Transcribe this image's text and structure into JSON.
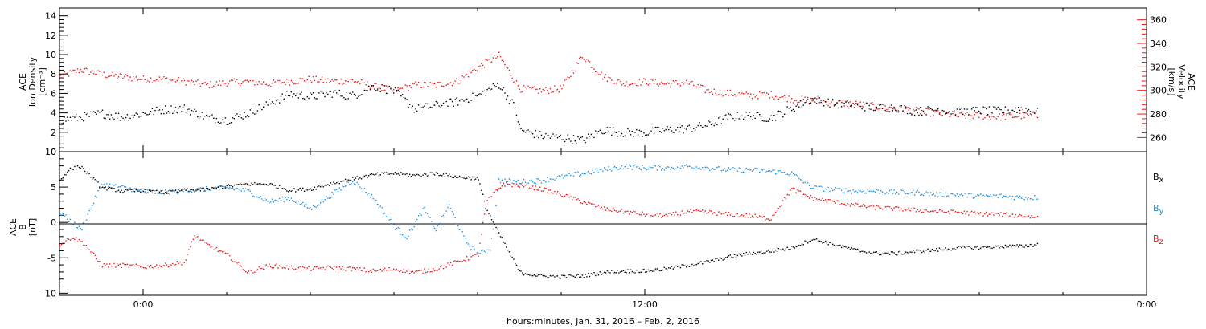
{
  "colors": {
    "black": "#000000",
    "red": "#e41a1c",
    "blue": "#1f8fe0"
  },
  "x_axis": {
    "label": "hours:minutes, Jan. 31, 2016 – Feb. 2, 2016",
    "range_hours": [
      -2.0,
      24.0
    ],
    "ticks": [
      {
        "hour": 0,
        "label": "0:00"
      },
      {
        "hour": 12,
        "label": "12:00"
      },
      {
        "hour": 24,
        "label": "0:00"
      }
    ],
    "minor_ticks_hours": [
      2,
      4,
      6,
      8,
      10,
      14,
      16,
      18,
      20,
      22,
      26,
      28,
      30,
      32,
      34
    ]
  },
  "panel_top": {
    "left_axis": {
      "line1": "ACE",
      "line2": "Ion Density",
      "line3": "[cm⁻³]",
      "ticks": [
        0,
        2,
        4,
        6,
        8,
        10,
        12,
        14
      ],
      "ylim": [
        0,
        14.8
      ]
    },
    "right_axis": {
      "line1": "ACE",
      "line2": "Velocity",
      "line3": "[km/s]",
      "ticks": [
        260,
        280,
        300,
        320,
        340,
        360
      ],
      "ylim": [
        248,
        370
      ]
    }
  },
  "panel_bottom": {
    "left_axis": {
      "line1": "ACE",
      "line2": "B",
      "line3": "[nT]",
      "ticks": [
        -10,
        -5,
        0,
        5,
        10
      ],
      "ylim": [
        -10.3,
        10.0
      ]
    },
    "legend": [
      {
        "label": "B",
        "sub": "x",
        "color": "#000000"
      },
      {
        "label": "B",
        "sub": "y",
        "color": "#1f8fe0"
      },
      {
        "label": "B",
        "sub": "z",
        "color": "#e41a1c"
      }
    ]
  },
  "chart_data": [
    {
      "type": "scatter",
      "title": "",
      "xlabel": "hours:minutes, Jan. 31, 2016 – Feb. 2, 2016",
      "x_unit": "hours from 2016-01-31 00:00",
      "series": [
        {
          "axis": "left",
          "color": "#000000",
          "x": [
            -2.0,
            -1.5,
            -1.0,
            -0.5,
            0.0,
            0.5,
            1.0,
            1.5,
            2.0,
            2.5,
            3.0,
            3.5,
            4.0,
            4.5,
            5.0,
            5.5,
            6.0,
            6.5,
            7.0,
            7.5,
            8.0,
            8.5,
            8.9,
            9.0,
            9.5,
            10.0,
            10.5,
            11.0,
            11.5,
            12.0,
            12.5,
            13.0,
            13.5,
            14.0,
            14.5,
            15.0,
            15.5,
            16.0,
            16.5,
            17.0,
            17.5,
            18.0,
            18.5,
            19.0,
            19.5,
            20.0,
            20.5,
            21.0,
            21.4
          ],
          "values": [
            3.3,
            3.6,
            4.0,
            3.6,
            4.0,
            4.4,
            4.5,
            3.6,
            3.3,
            4.0,
            5.0,
            6.0,
            5.7,
            6.1,
            5.8,
            6.8,
            6.3,
            4.4,
            4.8,
            5.2,
            5.8,
            7.0,
            4.5,
            2.3,
            1.7,
            1.5,
            1.2,
            2.3,
            2.0,
            2.0,
            2.3,
            2.4,
            2.8,
            3.6,
            3.8,
            3.5,
            4.5,
            5.5,
            5.0,
            4.8,
            4.6,
            4.6,
            4.2,
            4.4,
            4.1,
            4.3,
            4.2,
            4.5,
            4.1
          ]
        },
        {
          "axis": "right",
          "color": "#e41a1c",
          "x": [
            -2.0,
            -1.5,
            -1.0,
            -0.5,
            0.0,
            0.5,
            1.0,
            1.5,
            2.0,
            2.5,
            3.0,
            3.5,
            4.0,
            4.5,
            5.0,
            5.5,
            6.0,
            6.5,
            7.0,
            7.5,
            8.0,
            8.5,
            9.0,
            9.5,
            10.0,
            10.5,
            11.0,
            11.5,
            12.0,
            12.5,
            13.0,
            13.5,
            14.0,
            14.5,
            15.0,
            15.5,
            16.0,
            16.5,
            17.0,
            17.5,
            18.0,
            18.5,
            19.0,
            19.5,
            20.0,
            20.5,
            21.0,
            21.4
          ],
          "values": [
            312,
            318,
            314,
            312,
            310,
            310,
            308,
            305,
            307,
            308,
            306,
            308,
            310,
            308,
            309,
            304,
            300,
            305,
            305,
            308,
            320,
            330,
            302,
            300,
            302,
            330,
            312,
            306,
            308,
            306,
            307,
            300,
            298,
            296,
            297,
            293,
            292,
            290,
            289,
            287,
            285,
            283,
            281,
            279,
            279,
            278,
            279,
            279
          ]
        }
      ]
    },
    {
      "type": "scatter",
      "title": "",
      "xlabel": "hours:minutes, Jan. 31, 2016 – Feb. 2, 2016",
      "x_unit": "hours from 2016-01-31 00:00",
      "series": [
        {
          "name": "Bx",
          "color": "#000000",
          "x": [
            -2.0,
            -1.8,
            -1.5,
            -1.0,
            -0.5,
            0.0,
            0.5,
            1.0,
            1.5,
            2.0,
            2.5,
            3.0,
            3.5,
            4.0,
            4.5,
            5.0,
            5.5,
            6.0,
            6.5,
            7.0,
            7.5,
            8.0,
            8.2,
            8.5,
            9.0,
            9.5,
            10.0,
            10.5,
            11.0,
            11.5,
            12.0,
            12.5,
            13.0,
            13.5,
            14.0,
            14.5,
            15.0,
            15.5,
            16.0,
            16.5,
            17.0,
            17.5,
            18.0,
            18.5,
            19.0,
            19.5,
            20.0,
            20.5,
            21.0,
            21.4
          ],
          "values": [
            6.0,
            7.5,
            8.0,
            5.0,
            4.5,
            4.5,
            4.3,
            4.6,
            4.7,
            5.2,
            5.5,
            5.5,
            4.6,
            4.8,
            5.6,
            6.2,
            6.8,
            7.0,
            6.7,
            7.0,
            6.5,
            6.3,
            2.0,
            -1.5,
            -7.0,
            -7.5,
            -7.6,
            -7.5,
            -7.0,
            -6.8,
            -6.8,
            -6.5,
            -6.0,
            -5.5,
            -4.8,
            -4.3,
            -4.0,
            -3.5,
            -2.3,
            -3.0,
            -3.8,
            -4.3,
            -4.3,
            -4.0,
            -3.8,
            -3.5,
            -3.5,
            -3.3,
            -3.3,
            -3.0
          ]
        },
        {
          "name": "By",
          "color": "#1f8fe0",
          "x": [
            -2.0,
            -1.5,
            -1.0,
            -0.5,
            0.0,
            0.5,
            1.0,
            1.5,
            2.0,
            2.5,
            3.0,
            3.5,
            4.0,
            4.5,
            5.0,
            5.5,
            6.0,
            6.3,
            6.7,
            7.0,
            7.3,
            7.7,
            8.0,
            8.3,
            8.5,
            9.0,
            9.5,
            10.0,
            10.5,
            11.0,
            11.5,
            12.0,
            12.5,
            13.0,
            13.5,
            14.0,
            14.5,
            15.0,
            15.5,
            16.0,
            16.5,
            17.0,
            17.5,
            18.0,
            18.5,
            19.0,
            19.5,
            20.0,
            20.5,
            21.0,
            21.4
          ],
          "values": [
            1.5,
            -1.0,
            5.5,
            5.0,
            4.5,
            4.3,
            4.6,
            4.8,
            5.0,
            4.5,
            3.0,
            3.5,
            2.0,
            4.0,
            6.0,
            3.5,
            -0.5,
            -2.0,
            2.0,
            -1.0,
            2.5,
            -2.5,
            -4.5,
            -3.5,
            6.0,
            5.8,
            6.0,
            6.5,
            7.0,
            7.5,
            8.0,
            7.8,
            7.8,
            8.0,
            7.8,
            7.5,
            7.5,
            7.3,
            7.0,
            5.0,
            4.7,
            4.5,
            4.5,
            4.3,
            4.3,
            4.0,
            4.0,
            3.8,
            3.8,
            3.6,
            3.6
          ]
        },
        {
          "name": "Bz",
          "color": "#e41a1c",
          "x": [
            -2.0,
            -1.7,
            -1.4,
            -1.0,
            -0.5,
            0.0,
            0.5,
            1.0,
            1.2,
            1.5,
            2.0,
            2.5,
            3.0,
            3.5,
            4.0,
            4.5,
            5.0,
            5.5,
            6.0,
            6.5,
            7.0,
            7.5,
            8.0,
            8.2,
            8.6,
            9.0,
            9.5,
            10.0,
            10.5,
            11.0,
            11.5,
            12.0,
            12.5,
            13.0,
            13.5,
            14.0,
            14.5,
            15.0,
            15.5,
            16.0,
            16.5,
            17.0,
            17.5,
            18.0,
            18.5,
            19.0,
            19.5,
            20.0,
            20.5,
            21.0,
            21.4
          ],
          "values": [
            -3.0,
            -2.0,
            -3.0,
            -6.0,
            -6.0,
            -6.2,
            -6.0,
            -5.5,
            -1.8,
            -3.0,
            -4.5,
            -7.0,
            -6.0,
            -6.3,
            -6.5,
            -6.3,
            -6.5,
            -6.8,
            -6.5,
            -7.0,
            -6.5,
            -5.5,
            -4.5,
            3.0,
            5.5,
            5.3,
            4.8,
            4.0,
            3.0,
            2.0,
            1.6,
            1.2,
            1.0,
            1.6,
            1.5,
            1.2,
            1.0,
            0.6,
            4.8,
            3.5,
            3.0,
            2.5,
            2.2,
            2.0,
            1.8,
            1.6,
            1.5,
            1.3,
            1.2,
            1.0,
            0.8
          ]
        }
      ]
    }
  ]
}
